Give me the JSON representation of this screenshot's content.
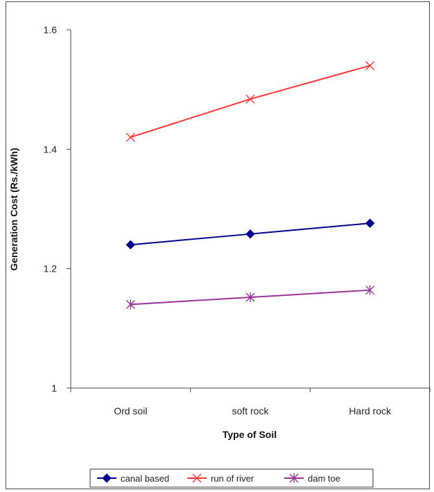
{
  "chart_data": {
    "type": "line",
    "title": "",
    "xlabel": "Type of Soil",
    "ylabel": "Generation Cost (Rs./kWh)",
    "categories": [
      "Ord soil",
      "soft rock",
      "Hard rock"
    ],
    "ylim": [
      1,
      1.6
    ],
    "yticks": [
      "1",
      "1.2",
      "1.4",
      "1.6"
    ],
    "grid": false,
    "legend_position": "bottom",
    "series": [
      {
        "name": "canal based",
        "values": [
          1.24,
          1.258,
          1.276
        ],
        "color": "#00008b",
        "marker": "diamond"
      },
      {
        "name": "run of river",
        "values": [
          1.42,
          1.484,
          1.54
        ],
        "color": "#ff3333",
        "marker": "x"
      },
      {
        "name": "dam toe",
        "values": [
          1.14,
          1.152,
          1.164
        ],
        "color": "#993399",
        "marker": "star"
      }
    ]
  }
}
